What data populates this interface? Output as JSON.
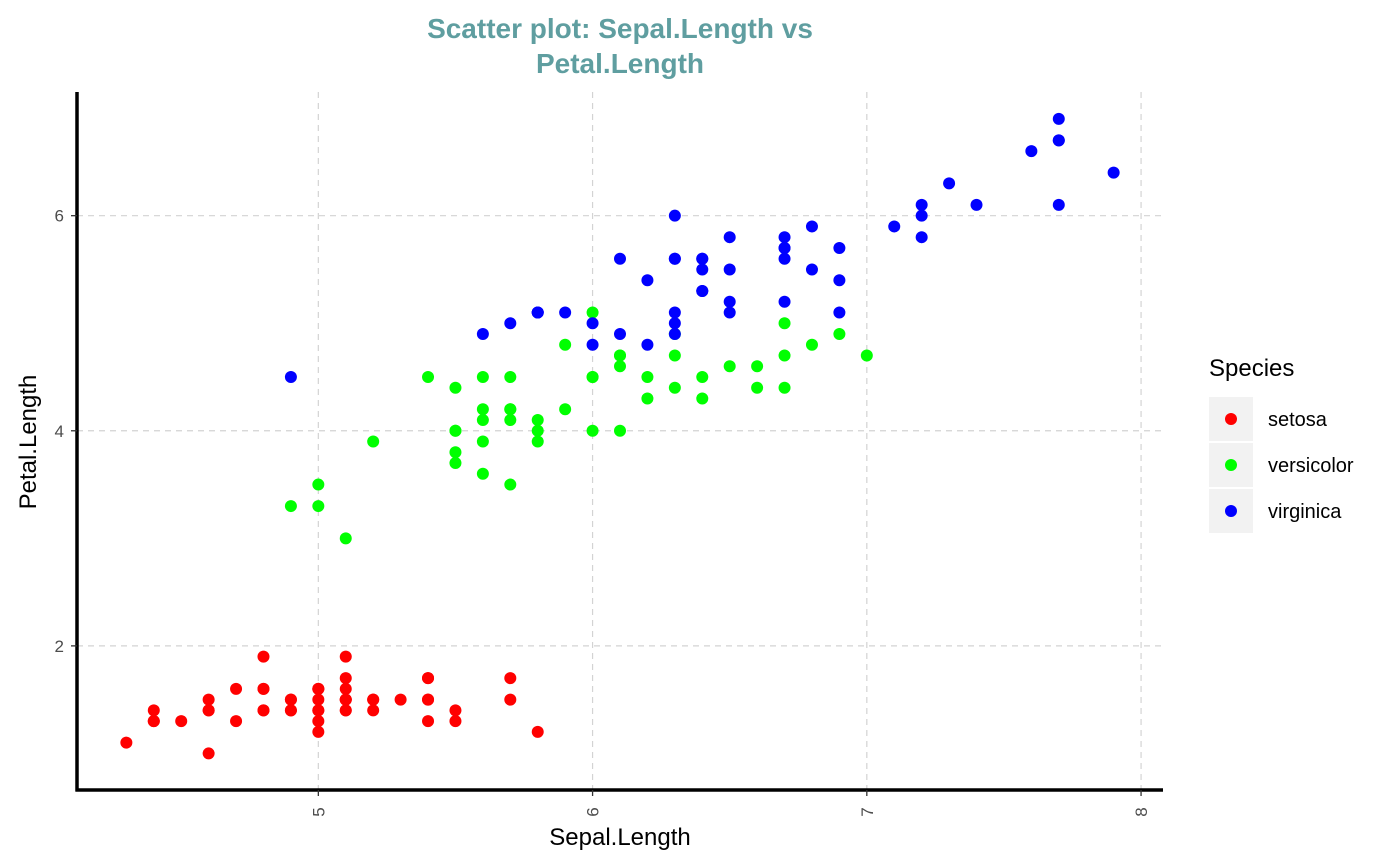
{
  "chart_data": {
    "type": "scatter",
    "title_lines": [
      "Scatter plot: Sepal.Length vs",
      "Petal.Length"
    ],
    "xlabel": "Sepal.Length",
    "ylabel": "Petal.Length",
    "x_ticks": [
      "5",
      "6",
      "7",
      "8"
    ],
    "y_ticks": [
      "2",
      "4",
      "6"
    ],
    "xlim": [
      4.12,
      8.08
    ],
    "ylim": [
      0.66,
      7.15
    ],
    "grid": true,
    "legend_position": "right",
    "legend_title": "Species",
    "colors": {
      "title": "#5f9ea0",
      "grid": "#d3d3d3",
      "axis": "#000000"
    },
    "series": [
      {
        "name": "setosa",
        "color": "#ff0000",
        "points": [
          [
            5.1,
            1.4
          ],
          [
            4.9,
            1.4
          ],
          [
            4.7,
            1.3
          ],
          [
            4.6,
            1.5
          ],
          [
            5.0,
            1.4
          ],
          [
            5.4,
            1.7
          ],
          [
            4.6,
            1.4
          ],
          [
            5.0,
            1.5
          ],
          [
            4.4,
            1.4
          ],
          [
            4.9,
            1.5
          ],
          [
            5.4,
            1.5
          ],
          [
            4.8,
            1.6
          ],
          [
            4.8,
            1.4
          ],
          [
            4.3,
            1.1
          ],
          [
            5.8,
            1.2
          ],
          [
            5.7,
            1.5
          ],
          [
            5.4,
            1.3
          ],
          [
            5.1,
            1.4
          ],
          [
            5.7,
            1.7
          ],
          [
            5.1,
            1.5
          ],
          [
            5.4,
            1.7
          ],
          [
            5.1,
            1.5
          ],
          [
            4.6,
            1.0
          ],
          [
            5.1,
            1.7
          ],
          [
            4.8,
            1.9
          ],
          [
            5.0,
            1.6
          ],
          [
            5.0,
            1.6
          ],
          [
            5.2,
            1.5
          ],
          [
            5.2,
            1.4
          ],
          [
            4.7,
            1.6
          ],
          [
            4.8,
            1.6
          ],
          [
            5.4,
            1.5
          ],
          [
            5.2,
            1.5
          ],
          [
            5.5,
            1.4
          ],
          [
            4.9,
            1.5
          ],
          [
            5.0,
            1.2
          ],
          [
            5.5,
            1.3
          ],
          [
            4.9,
            1.4
          ],
          [
            4.4,
            1.3
          ],
          [
            5.1,
            1.5
          ],
          [
            5.0,
            1.3
          ],
          [
            4.5,
            1.3
          ],
          [
            4.4,
            1.3
          ],
          [
            5.0,
            1.6
          ],
          [
            5.1,
            1.9
          ],
          [
            4.8,
            1.4
          ],
          [
            5.1,
            1.6
          ],
          [
            4.6,
            1.4
          ],
          [
            5.3,
            1.5
          ],
          [
            5.0,
            1.4
          ]
        ]
      },
      {
        "name": "versicolor",
        "color": "#00ff00",
        "points": [
          [
            7.0,
            4.7
          ],
          [
            6.4,
            4.5
          ],
          [
            6.9,
            4.9
          ],
          [
            5.5,
            4.0
          ],
          [
            6.5,
            4.6
          ],
          [
            5.7,
            4.5
          ],
          [
            6.3,
            4.7
          ],
          [
            4.9,
            3.3
          ],
          [
            6.6,
            4.6
          ],
          [
            5.2,
            3.9
          ],
          [
            5.0,
            3.5
          ],
          [
            5.9,
            4.2
          ],
          [
            6.0,
            4.0
          ],
          [
            6.1,
            4.7
          ],
          [
            5.6,
            3.6
          ],
          [
            6.7,
            4.4
          ],
          [
            5.6,
            4.5
          ],
          [
            5.8,
            4.1
          ],
          [
            6.2,
            4.5
          ],
          [
            5.6,
            3.9
          ],
          [
            5.9,
            4.8
          ],
          [
            6.1,
            4.0
          ],
          [
            6.3,
            4.9
          ],
          [
            6.1,
            4.7
          ],
          [
            6.4,
            4.3
          ],
          [
            6.6,
            4.4
          ],
          [
            6.8,
            4.8
          ],
          [
            6.7,
            5.0
          ],
          [
            6.0,
            4.5
          ],
          [
            5.7,
            3.5
          ],
          [
            5.5,
            3.8
          ],
          [
            5.5,
            3.7
          ],
          [
            5.8,
            3.9
          ],
          [
            6.0,
            5.1
          ],
          [
            5.4,
            4.5
          ],
          [
            6.0,
            4.5
          ],
          [
            6.7,
            4.7
          ],
          [
            6.3,
            4.4
          ],
          [
            5.6,
            4.1
          ],
          [
            5.5,
            4.0
          ],
          [
            5.5,
            4.4
          ],
          [
            6.1,
            4.6
          ],
          [
            5.8,
            4.0
          ],
          [
            5.0,
            3.3
          ],
          [
            5.6,
            4.2
          ],
          [
            5.7,
            4.2
          ],
          [
            5.7,
            4.2
          ],
          [
            6.2,
            4.3
          ],
          [
            5.1,
            3.0
          ],
          [
            5.7,
            4.1
          ]
        ]
      },
      {
        "name": "virginica",
        "color": "#0000ff",
        "points": [
          [
            6.3,
            6.0
          ],
          [
            5.8,
            5.1
          ],
          [
            7.1,
            5.9
          ],
          [
            6.3,
            5.6
          ],
          [
            6.5,
            5.8
          ],
          [
            7.6,
            6.6
          ],
          [
            4.9,
            4.5
          ],
          [
            7.3,
            6.3
          ],
          [
            6.7,
            5.8
          ],
          [
            7.2,
            6.1
          ],
          [
            6.5,
            5.1
          ],
          [
            6.4,
            5.3
          ],
          [
            6.8,
            5.5
          ],
          [
            5.7,
            5.0
          ],
          [
            5.8,
            5.1
          ],
          [
            6.4,
            5.3
          ],
          [
            6.5,
            5.5
          ],
          [
            7.7,
            6.7
          ],
          [
            7.7,
            6.9
          ],
          [
            6.0,
            5.0
          ],
          [
            6.9,
            5.7
          ],
          [
            5.6,
            4.9
          ],
          [
            7.7,
            6.7
          ],
          [
            6.3,
            4.9
          ],
          [
            6.7,
            5.7
          ],
          [
            7.2,
            6.0
          ],
          [
            6.2,
            4.8
          ],
          [
            6.1,
            4.9
          ],
          [
            6.4,
            5.6
          ],
          [
            7.2,
            5.8
          ],
          [
            7.4,
            6.1
          ],
          [
            7.9,
            6.4
          ],
          [
            6.4,
            5.6
          ],
          [
            6.3,
            5.1
          ],
          [
            6.1,
            5.6
          ],
          [
            7.7,
            6.1
          ],
          [
            6.3,
            5.6
          ],
          [
            6.4,
            5.5
          ],
          [
            6.0,
            4.8
          ],
          [
            6.9,
            5.4
          ],
          [
            6.7,
            5.6
          ],
          [
            6.9,
            5.1
          ],
          [
            5.8,
            5.1
          ],
          [
            6.8,
            5.9
          ],
          [
            6.7,
            5.7
          ],
          [
            6.7,
            5.2
          ],
          [
            6.3,
            5.0
          ],
          [
            6.5,
            5.2
          ],
          [
            6.2,
            5.4
          ],
          [
            5.9,
            5.1
          ]
        ]
      }
    ]
  }
}
